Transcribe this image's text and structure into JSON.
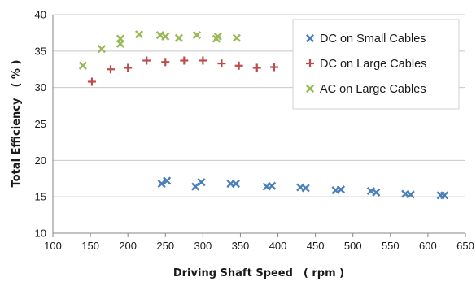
{
  "chart_data": {
    "type": "scatter",
    "title": "",
    "xlabel": "Driving Shaft Speed　( rpm )",
    "ylabel": "Total Efficiency　( % )",
    "xlim": [
      100,
      650
    ],
    "ylim": [
      10,
      40
    ],
    "xticks": [
      "100",
      "150",
      "200",
      "250",
      "300",
      "350",
      "400",
      "450",
      "500",
      "550",
      "600",
      "650"
    ],
    "yticks": [
      "10",
      "15",
      "20",
      "25",
      "30",
      "35",
      "40"
    ],
    "grid": "horizontal",
    "legend": "top-right",
    "series": [
      {
        "name": "DC on Small Cables",
        "marker": "x",
        "color": "#4a7ebb",
        "points": [
          [
            245,
            16.8
          ],
          [
            252,
            17.2
          ],
          [
            290,
            16.4
          ],
          [
            298,
            17.0
          ],
          [
            337,
            16.8
          ],
          [
            344,
            16.8
          ],
          [
            385,
            16.4
          ],
          [
            392,
            16.5
          ],
          [
            430,
            16.3
          ],
          [
            437,
            16.2
          ],
          [
            477,
            15.9
          ],
          [
            484,
            16.0
          ],
          [
            524,
            15.8
          ],
          [
            531,
            15.6
          ],
          [
            570,
            15.4
          ],
          [
            577,
            15.3
          ],
          [
            617,
            15.2
          ],
          [
            622,
            15.2
          ]
        ]
      },
      {
        "name": "DC on Large Cables",
        "marker": "+",
        "color": "#be4b48",
        "points": [
          [
            152,
            30.8
          ],
          [
            177,
            32.5
          ],
          [
            200,
            32.7
          ],
          [
            225,
            33.7
          ],
          [
            250,
            33.5
          ],
          [
            275,
            33.7
          ],
          [
            300,
            33.7
          ],
          [
            325,
            33.3
          ],
          [
            348,
            33.0
          ],
          [
            372,
            32.7
          ],
          [
            395,
            32.8
          ]
        ]
      },
      {
        "name": "AC on Large Cables",
        "marker": "x",
        "color": "#98b954",
        "points": [
          [
            140,
            33.0
          ],
          [
            165,
            35.3
          ],
          [
            190,
            36.0
          ],
          [
            190,
            36.7
          ],
          [
            215,
            37.3
          ],
          [
            243,
            37.2
          ],
          [
            250,
            37.0
          ],
          [
            268,
            36.8
          ],
          [
            292,
            37.2
          ],
          [
            318,
            36.7
          ],
          [
            320,
            37.0
          ],
          [
            345,
            36.8
          ]
        ]
      }
    ]
  }
}
